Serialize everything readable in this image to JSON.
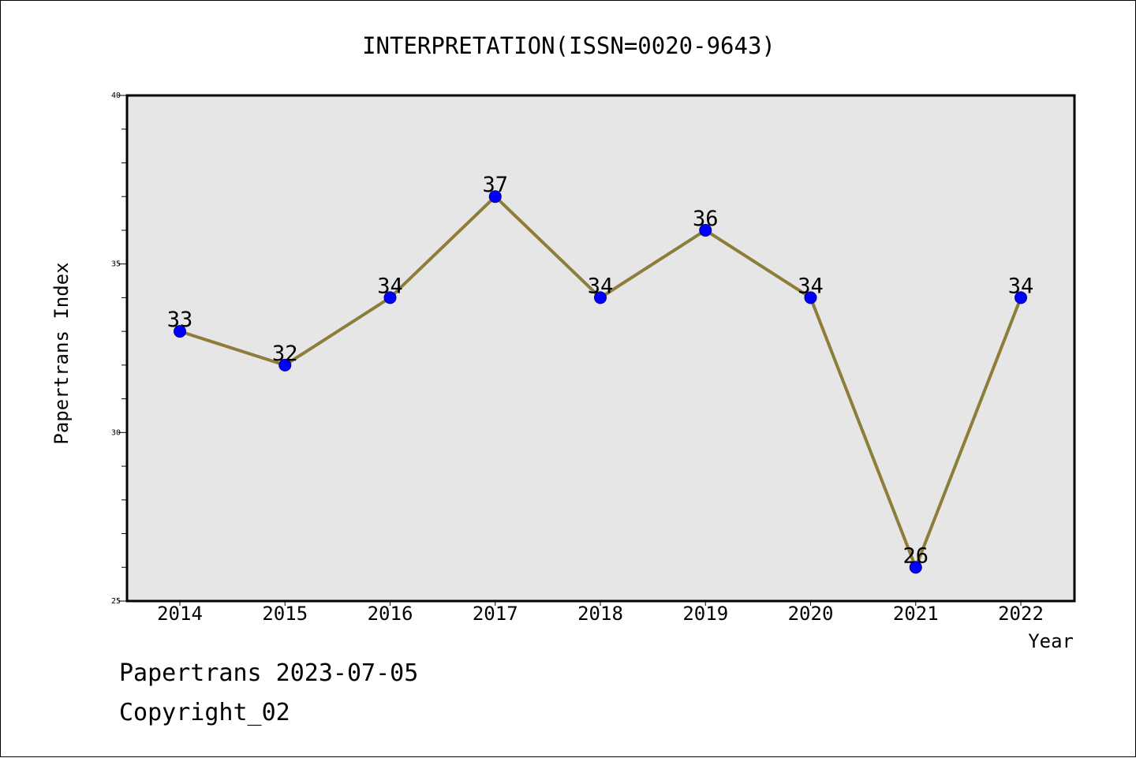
{
  "chart_data": {
    "type": "line",
    "title": "INTERPRETATION(ISSN=0020-9643)",
    "xlabel": "Year",
    "ylabel": "Papertrans Index",
    "categories": [
      "2014",
      "2015",
      "2016",
      "2017",
      "2018",
      "2019",
      "2020",
      "2021",
      "2022"
    ],
    "series": [
      {
        "values": [
          33,
          32,
          34,
          37,
          34,
          36,
          34,
          26,
          34
        ]
      }
    ],
    "data_labels": [
      "33",
      "32",
      "34",
      "37",
      "34",
      "36",
      "34",
      "26",
      "34"
    ],
    "ylim": [
      25,
      40
    ],
    "y_major_ticks": [
      25,
      30,
      35,
      40
    ],
    "y_minor_step": 1,
    "grid": false,
    "legend": "none",
    "colors": {
      "line": "#8c7d3a",
      "marker": "#0000ff",
      "plot_background": "#e6e6e6"
    }
  },
  "footer": {
    "date_line": "Papertrans 2023-07-05",
    "copyright_line": "Copyright_02"
  }
}
